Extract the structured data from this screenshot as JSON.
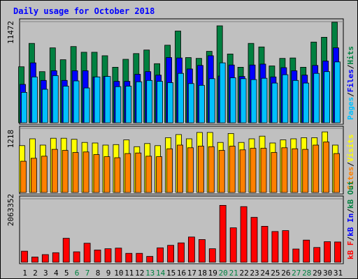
{
  "chart_data": {
    "type": "bar",
    "title": "Daily usage for October 2018",
    "days": [
      "1",
      "2",
      "3",
      "4",
      "5",
      "6",
      "7",
      "8",
      "9",
      "10",
      "11",
      "12",
      "13",
      "14",
      "15",
      "16",
      "17",
      "18",
      "19",
      "20",
      "21",
      "22",
      "23",
      "24",
      "25",
      "26",
      "27",
      "28",
      "29",
      "30",
      "31"
    ],
    "weekend_days": [
      "6",
      "7",
      "13",
      "14",
      "20",
      "21",
      "27",
      "28"
    ],
    "panels": [
      {
        "name": "requests",
        "scale_label": "11472",
        "ymax": 11472,
        "legend": [
          "Pages",
          "/",
          "Files",
          "/",
          "Hits"
        ],
        "legend_colors": [
          "#00c0ff",
          "#000000",
          "#0000ff",
          "#000000",
          "#008040"
        ],
        "series": [
          {
            "name": "Hits",
            "color": "#008040",
            "values": [
              6350,
              9000,
              5800,
              8500,
              7150,
              8650,
              8000,
              8000,
              7600,
              6300,
              7200,
              7850,
              8250,
              6700,
              8800,
              10400,
              7400,
              7300,
              8100,
              11000,
              7800,
              6300,
              9000,
              8600,
              6450,
              7300,
              7350,
              6300,
              9150,
              9700,
              11400
            ]
          },
          {
            "name": "Files",
            "color": "#0000ff",
            "values": [
              4350,
              6800,
              4800,
              5900,
              4800,
              5900,
              5900,
              5200,
              5250,
              4700,
              4700,
              5500,
              5800,
              5400,
              7400,
              7350,
              6100,
              6500,
              7600,
              5300,
              6550,
              5250,
              6550,
              6650,
              5200,
              6250,
              5900,
              5400,
              6500,
              7000,
              8500
            ]
          },
          {
            "name": "Pages",
            "color": "#00c0ff",
            "values": [
              3450,
              5200,
              3800,
              5350,
              4150,
              4750,
              3950,
              5200,
              5250,
              4100,
              4150,
              4650,
              4800,
              4700,
              4550,
              5600,
              4450,
              4250,
              5000,
              6800,
              5100,
              5000,
              4900,
              5050,
              4500,
              5450,
              4800,
              4500,
              5600,
              5800,
              6900
            ]
          }
        ]
      },
      {
        "name": "visits",
        "scale_label": "1218",
        "ymax": 1218,
        "legend": [
          "Sites",
          "/",
          "Visits"
        ],
        "legend_colors": [
          "#ff8000",
          "#000000",
          "#ffff00"
        ],
        "series": [
          {
            "name": "Visits",
            "color": "#ffff00",
            "values": [
              890,
              1020,
              900,
              1030,
              1030,
              1010,
              950,
              940,
              900,
              910,
              1000,
              870,
              930,
              890,
              1040,
              1100,
              1020,
              1140,
              1140,
              950,
              1120,
              950,
              1020,
              1070,
              940,
              1000,
              1020,
              1040,
              1040,
              1150,
              900
            ]
          },
          {
            "name": "Sites",
            "color": "#ff8000",
            "values": [
              595,
              650,
              690,
              820,
              800,
              760,
              770,
              720,
              680,
              660,
              740,
              750,
              690,
              680,
              830,
              900,
              850,
              880,
              870,
              800,
              880,
              810,
              840,
              840,
              760,
              850,
              830,
              820,
              900,
              960,
              740
            ]
          }
        ]
      },
      {
        "name": "volume",
        "scale_label": "2063352",
        "ymax": 2063352,
        "legend": [
          "kB F",
          "/",
          "kB In",
          "/",
          "kB Out"
        ],
        "legend_colors": [
          "#ff0000",
          "#000000",
          "#0000ff",
          "#000000",
          "#008040"
        ],
        "series": [
          {
            "name": "kB F",
            "color": "#ff0000",
            "values": [
              360000,
              170000,
              250000,
              310000,
              780000,
              340000,
              620000,
              400000,
              440000,
              460000,
              290000,
              290000,
              190000,
              470000,
              550000,
              630000,
              820000,
              740000,
              440000,
              1850000,
              1120000,
              1810000,
              1460000,
              1170000,
              1000000,
              1030000,
              430000,
              720000,
              480000,
              670000,
              660000
            ]
          }
        ]
      }
    ]
  }
}
